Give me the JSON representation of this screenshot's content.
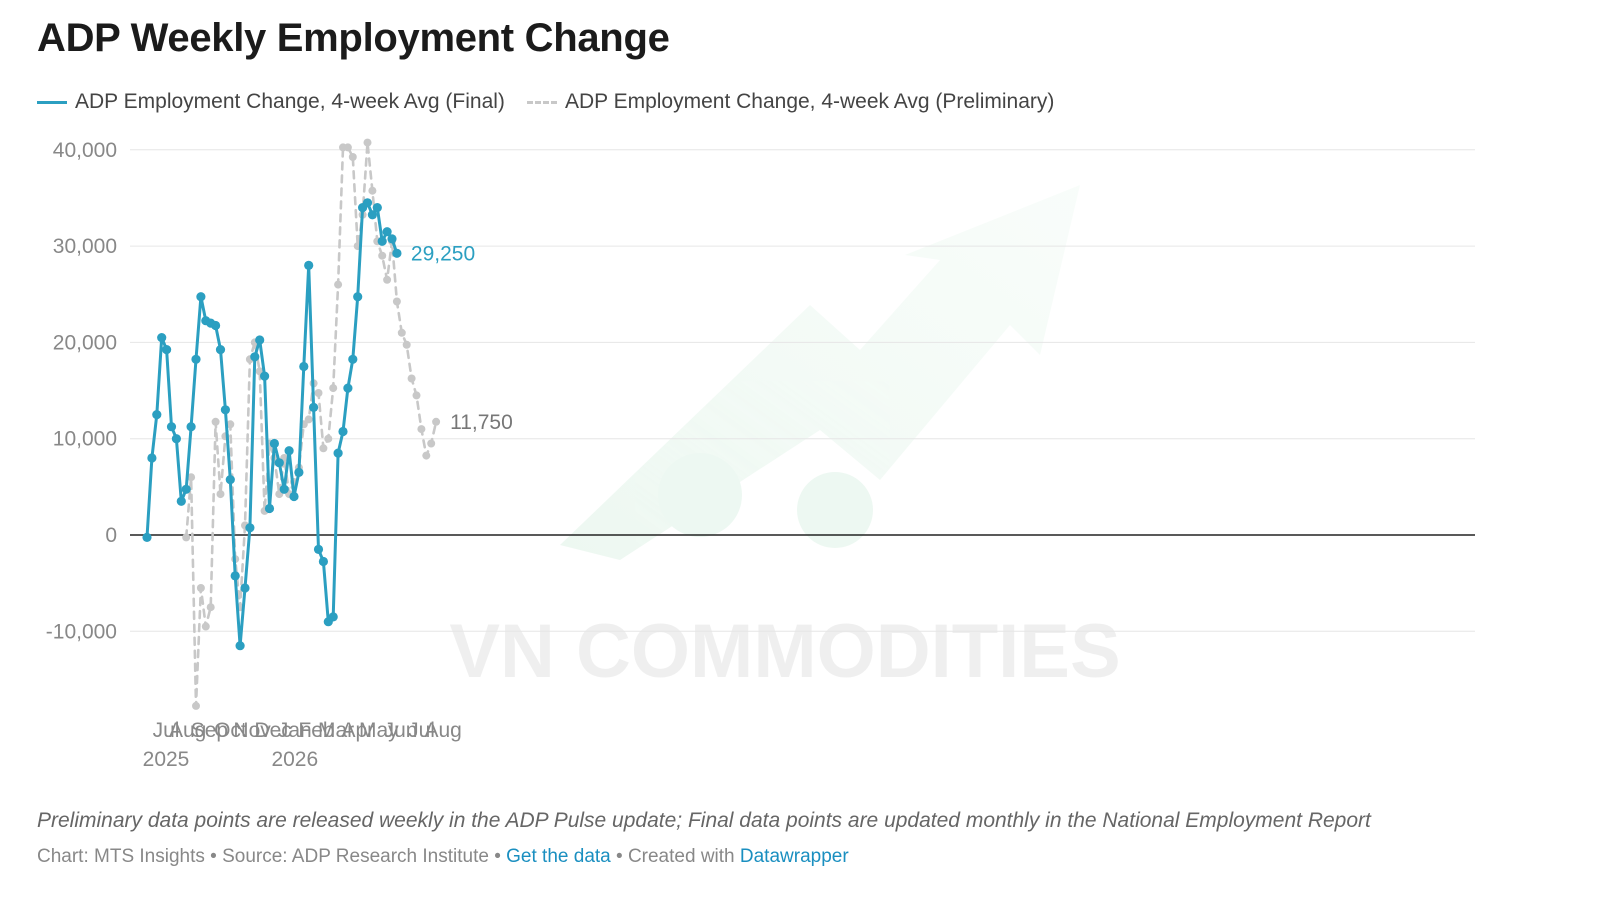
{
  "chart_data": {
    "type": "line",
    "title": "ADP Weekly Employment Change",
    "xlabel": "",
    "ylabel": "",
    "ylim": [
      -20000,
      42000
    ],
    "yticks": [
      40000,
      30000,
      20000,
      10000,
      0,
      -10000
    ],
    "ytick_labels": [
      "40,000",
      "30,000",
      "20,000",
      "10,000",
      "0",
      "-10,000"
    ],
    "grid": true,
    "legend_position": "top-left",
    "xticks": [
      {
        "label": "Jul",
        "sublabel": "2025",
        "date": "2025-07-01"
      },
      {
        "label": "Aug",
        "sublabel": "",
        "date": "2025-08-01"
      },
      {
        "label": "Sep",
        "sublabel": "",
        "date": "2025-09-01"
      },
      {
        "label": "Oct",
        "sublabel": "",
        "date": "2025-10-01"
      },
      {
        "label": "Nov",
        "sublabel": "",
        "date": "2025-11-01"
      },
      {
        "label": "Dec",
        "sublabel": "",
        "date": "2025-12-01"
      },
      {
        "label": "Jan",
        "sublabel": "2026",
        "date": "2026-01-01"
      },
      {
        "label": "Feb",
        "sublabel": "",
        "date": "2026-02-01"
      },
      {
        "label": "Mar",
        "sublabel": "",
        "date": "2026-03-01"
      },
      {
        "label": "Apr",
        "sublabel": "",
        "date": "2026-04-01"
      },
      {
        "label": "May",
        "sublabel": "",
        "date": "2026-05-01"
      },
      {
        "label": "Jun",
        "sublabel": "",
        "date": "2026-06-01"
      },
      {
        "label": "Jul",
        "sublabel": "",
        "date": "2026-07-01"
      },
      {
        "label": "Aug",
        "sublabel": "",
        "date": "2026-08-01"
      }
    ],
    "series": [
      {
        "name": "ADP Employment Change, 4-week Avg (Final)",
        "color": "#2b9fc1",
        "style": "solid",
        "end_label": "29,250",
        "points": [
          [
            "2025-06-21",
            -250
          ],
          [
            "2025-06-28",
            8000
          ],
          [
            "2025-07-05",
            12500
          ],
          [
            "2025-07-12",
            20500
          ],
          [
            "2025-07-19",
            19250
          ],
          [
            "2025-07-26",
            11250
          ],
          [
            "2025-08-02",
            10000
          ],
          [
            "2025-08-09",
            3500
          ],
          [
            "2025-08-16",
            4750
          ],
          [
            "2025-08-23",
            11250
          ],
          [
            "2025-08-30",
            18250
          ],
          [
            "2025-09-06",
            24750
          ],
          [
            "2025-09-13",
            22250
          ],
          [
            "2025-09-20",
            22000
          ],
          [
            "2025-09-27",
            21750
          ],
          [
            "2025-10-04",
            19250
          ],
          [
            "2025-10-11",
            13000
          ],
          [
            "2025-10-18",
            5750
          ],
          [
            "2025-10-25",
            -4250
          ],
          [
            "2025-11-01",
            -11500
          ],
          [
            "2025-11-08",
            -5500
          ],
          [
            "2025-11-15",
            750
          ],
          [
            "2025-11-22",
            18500
          ],
          [
            "2025-11-29",
            20250
          ],
          [
            "2025-12-06",
            16500
          ],
          [
            "2025-12-13",
            2750
          ],
          [
            "2025-12-20",
            9500
          ],
          [
            "2025-12-27",
            7500
          ],
          [
            "2026-01-03",
            4750
          ],
          [
            "2026-01-10",
            8750
          ],
          [
            "2026-01-17",
            4000
          ],
          [
            "2026-01-24",
            6500
          ],
          [
            "2026-01-31",
            17500
          ],
          [
            "2026-02-07",
            28000
          ],
          [
            "2026-02-14",
            13250
          ],
          [
            "2026-02-21",
            -1500
          ],
          [
            "2026-02-28",
            -2750
          ],
          [
            "2026-03-07",
            -9000
          ],
          [
            "2026-03-14",
            -8500
          ],
          [
            "2026-03-21",
            8500
          ],
          [
            "2026-03-28",
            10750
          ],
          [
            "2026-04-04",
            15250
          ],
          [
            "2026-04-11",
            18250
          ],
          [
            "2026-04-18",
            24750
          ],
          [
            "2026-04-25",
            34000
          ],
          [
            "2026-05-02",
            34500
          ],
          [
            "2026-05-09",
            33250
          ],
          [
            "2026-05-16",
            34000
          ],
          [
            "2026-05-23",
            30500
          ],
          [
            "2026-05-30",
            31500
          ],
          [
            "2026-06-06",
            30750
          ],
          [
            "2026-06-13",
            29250
          ]
        ]
      },
      {
        "name": "ADP Employment Change, 4-week Avg (Preliminary)",
        "color": "#c8c8c8",
        "style": "dashed",
        "end_label": "11,750",
        "points": [
          [
            "2025-08-16",
            -250
          ],
          [
            "2025-08-23",
            6000
          ],
          [
            "2025-08-30",
            -17750
          ],
          [
            "2025-09-06",
            -5500
          ],
          [
            "2025-09-13",
            -9500
          ],
          [
            "2025-09-20",
            -7500
          ],
          [
            "2025-09-27",
            11750
          ],
          [
            "2025-10-04",
            4250
          ],
          [
            "2025-10-11",
            10250
          ],
          [
            "2025-10-18",
            11500
          ],
          [
            "2025-10-25",
            -2500
          ],
          [
            "2025-11-01",
            -7500
          ],
          [
            "2025-11-08",
            1000
          ],
          [
            "2025-11-15",
            18250
          ],
          [
            "2025-11-22",
            20000
          ],
          [
            "2025-11-29",
            17000
          ],
          [
            "2025-12-06",
            2500
          ],
          [
            "2025-12-13",
            9500
          ],
          [
            "2025-12-20",
            8000
          ],
          [
            "2025-12-27",
            4250
          ],
          [
            "2026-01-03",
            8000
          ],
          [
            "2026-01-10",
            4250
          ],
          [
            "2026-01-17",
            5500
          ],
          [
            "2026-01-24",
            7000
          ],
          [
            "2026-01-31",
            11500
          ],
          [
            "2026-02-07",
            12000
          ],
          [
            "2026-02-14",
            15750
          ],
          [
            "2026-02-21",
            14750
          ],
          [
            "2026-02-28",
            9000
          ],
          [
            "2026-03-07",
            10000
          ],
          [
            "2026-03-14",
            15250
          ],
          [
            "2026-03-21",
            26000
          ],
          [
            "2026-03-28",
            40250
          ],
          [
            "2026-04-04",
            40250
          ],
          [
            "2026-04-11",
            39250
          ],
          [
            "2026-04-18",
            30000
          ],
          [
            "2026-04-25",
            33250
          ],
          [
            "2026-05-02",
            40750
          ],
          [
            "2026-05-09",
            35750
          ],
          [
            "2026-05-16",
            30500
          ],
          [
            "2026-05-23",
            29000
          ],
          [
            "2026-05-30",
            26500
          ],
          [
            "2026-06-06",
            30500
          ],
          [
            "2026-06-13",
            24250
          ],
          [
            "2026-06-20",
            21000
          ],
          [
            "2026-06-27",
            19750
          ],
          [
            "2026-07-04",
            16250
          ],
          [
            "2026-07-11",
            14500
          ],
          [
            "2026-07-18",
            11000
          ],
          [
            "2026-07-25",
            8250
          ],
          [
            "2026-08-01",
            9500
          ],
          [
            "2026-08-08",
            11750
          ]
        ]
      }
    ]
  },
  "watermark": "VN COMMODITIES",
  "note": "Preliminary data points are released weekly in the ADP Pulse update; Final data points are updated monthly in the National Employment Report",
  "credits": {
    "prefix": "Chart: MTS Insights • Source: ADP Research Institute • ",
    "get_data": "Get the data",
    "middle": " • Created with ",
    "datawrapper": "Datawrapper"
  }
}
